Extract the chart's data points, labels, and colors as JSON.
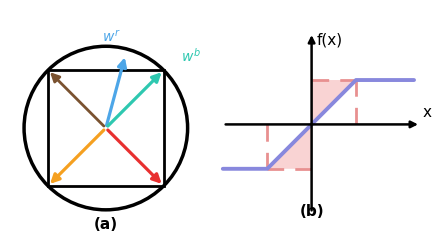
{
  "fig_width": 4.32,
  "fig_height": 2.42,
  "dpi": 100,
  "bg_color": "#ffffff",
  "circle_color": "#000000",
  "arrow_blue_color": "#4da6e8",
  "arrow_teal_color": "#2ec8b0",
  "arrow_brown_color": "#7a5230",
  "arrow_orange_color": "#f5a020",
  "arrow_red_color": "#e83030",
  "label_wr_color": "#4da6e8",
  "label_wb_color": "#2ec8b0",
  "func_color": "#8888dd",
  "dashed_color": "#e89090",
  "shaded_color": "#f8cccc",
  "axis_color": "#000000",
  "label_a": "(a)",
  "label_b": "(b)",
  "xlabel": "x",
  "ylabel": "f(x)"
}
